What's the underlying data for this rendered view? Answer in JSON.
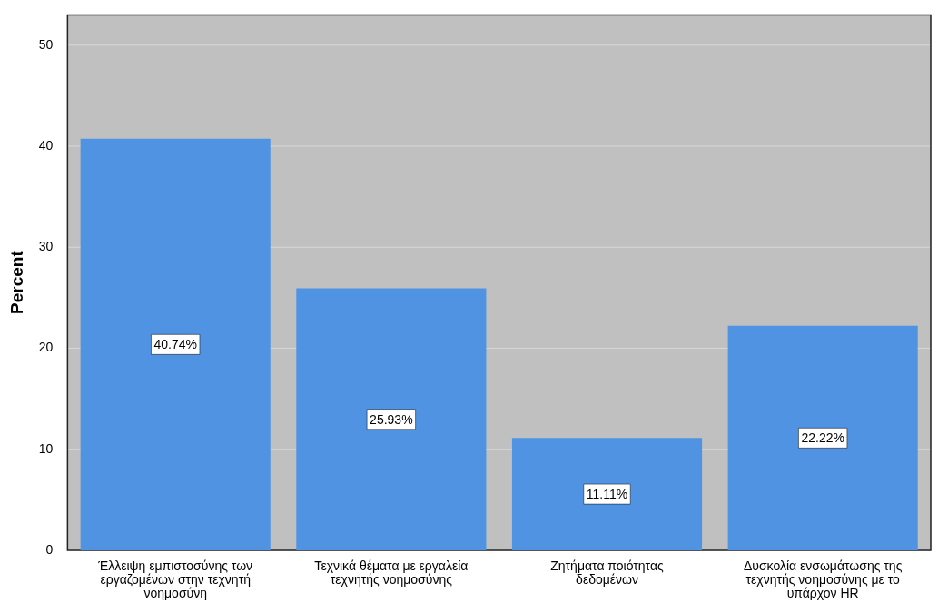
{
  "chart_data": {
    "type": "bar",
    "ylabel": "Percent",
    "categories": [
      "Έλλειψη εμπιστοσύνης των εργαζομένων στην τεχνητή νοημοσύνη",
      "Τεχνικά θέματα με εργαλεία τεχνητής νοημοσύνης",
      "Ζητήματα ποιότητας δεδομένων",
      "Δυσκολία ενσωμάτωσης της τεχνητής νοημοσύνης με το υπάρχον HR"
    ],
    "values": [
      40.74,
      25.93,
      11.11,
      22.22
    ],
    "value_labels": [
      "40.74%",
      "25.93%",
      "11.11%",
      "22.22%"
    ],
    "color": "#5193e3",
    "ylim": [
      0,
      53
    ],
    "yticks": [
      0,
      10,
      20,
      30,
      40,
      50
    ],
    "grid": "y",
    "legend": false
  }
}
